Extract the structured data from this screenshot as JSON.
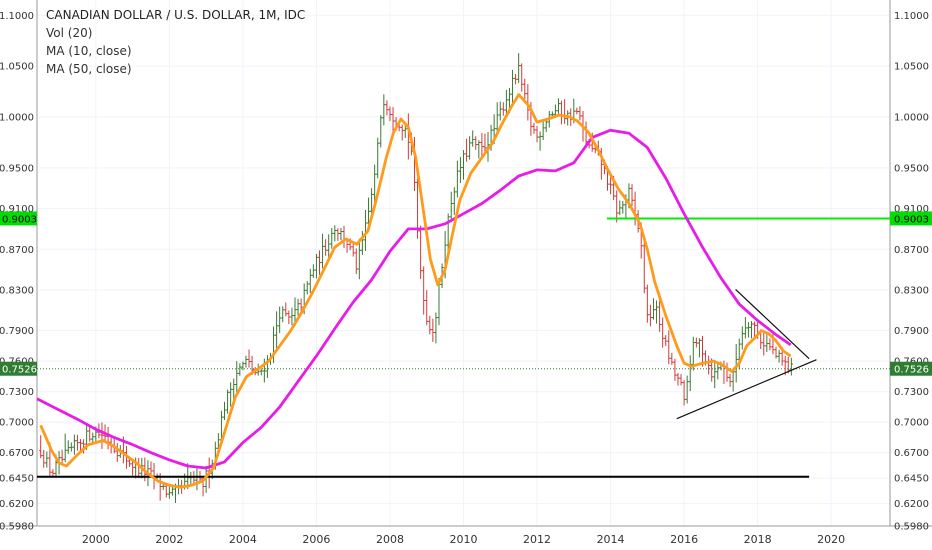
{
  "chart_data": {
    "type": "ohlc",
    "title": "CANADIAN DOLLAR / U.S. DOLLAR, 1M, IDC",
    "indicators": [
      "Vol (20)",
      "MA (10, close)",
      "MA (50, close)"
    ],
    "x_range": [
      1998.4,
      2021.6
    ],
    "y_range": [
      0.598,
      1.115
    ],
    "x_ticks": [
      "2000",
      "2002",
      "2004",
      "2006",
      "2008",
      "2010",
      "2012",
      "2014",
      "2016",
      "2018",
      "2020"
    ],
    "y_ticks": [
      "1.1000",
      "1.0500",
      "1.0000",
      "0.9500",
      "0.9100",
      "0.8700",
      "0.8300",
      "0.7900",
      "0.7600",
      "0.7300",
      "0.7000",
      "0.6700",
      "0.6450",
      "0.6200",
      "0.5980"
    ],
    "price_labels": [
      {
        "value": 0.9003,
        "label": "0.9003",
        "color": "#00dd00"
      },
      {
        "value": 0.7526,
        "label": "0.7526",
        "color": "#2e7d32"
      }
    ],
    "closes": [
      [
        1998.5,
        0.672
      ],
      [
        1998.8,
        0.65
      ],
      [
        1999.0,
        0.66
      ],
      [
        1999.3,
        0.672
      ],
      [
        1999.6,
        0.682
      ],
      [
        1999.9,
        0.69
      ],
      [
        2000.2,
        0.688
      ],
      [
        2000.5,
        0.676
      ],
      [
        2000.8,
        0.665
      ],
      [
        2001.1,
        0.655
      ],
      [
        2001.4,
        0.65
      ],
      [
        2001.7,
        0.642
      ],
      [
        2002.0,
        0.628
      ],
      [
        2002.3,
        0.634
      ],
      [
        2002.6,
        0.645
      ],
      [
        2002.9,
        0.638
      ],
      [
        2003.2,
        0.666
      ],
      [
        2003.5,
        0.716
      ],
      [
        2003.8,
        0.748
      ],
      [
        2004.1,
        0.76
      ],
      [
        2004.4,
        0.745
      ],
      [
        2004.7,
        0.762
      ],
      [
        2005.0,
        0.808
      ],
      [
        2005.3,
        0.8
      ],
      [
        2005.6,
        0.818
      ],
      [
        2005.9,
        0.85
      ],
      [
        2006.2,
        0.87
      ],
      [
        2006.5,
        0.892
      ],
      [
        2006.8,
        0.88
      ],
      [
        2007.1,
        0.852
      ],
      [
        2007.4,
        0.902
      ],
      [
        2007.6,
        0.945
      ],
      [
        2007.8,
        1.02
      ],
      [
        2008.1,
        1.0
      ],
      [
        2008.4,
        0.99
      ],
      [
        2008.6,
        0.965
      ],
      [
        2008.8,
        0.86
      ],
      [
        2009.0,
        0.8
      ],
      [
        2009.2,
        0.79
      ],
      [
        2009.5,
        0.88
      ],
      [
        2009.7,
        0.925
      ],
      [
        2009.9,
        0.95
      ],
      [
        2010.2,
        0.975
      ],
      [
        2010.5,
        0.968
      ],
      [
        2010.8,
        0.985
      ],
      [
        2011.0,
        1.005
      ],
      [
        2011.3,
        1.03
      ],
      [
        2011.5,
        1.045
      ],
      [
        2011.8,
        0.995
      ],
      [
        2012.0,
        0.98
      ],
      [
        2012.3,
        1.002
      ],
      [
        2012.6,
        1.008
      ],
      [
        2012.8,
        1.0
      ],
      [
        2013.1,
        1.005
      ],
      [
        2013.4,
        0.97
      ],
      [
        2013.7,
        0.96
      ],
      [
        2013.9,
        0.94
      ],
      [
        2014.2,
        0.905
      ],
      [
        2014.5,
        0.925
      ],
      [
        2014.8,
        0.885
      ],
      [
        2015.0,
        0.8
      ],
      [
        2015.2,
        0.815
      ],
      [
        2015.5,
        0.775
      ],
      [
        2015.7,
        0.75
      ],
      [
        2015.9,
        0.738
      ],
      [
        2016.0,
        0.718
      ],
      [
        2016.2,
        0.77
      ],
      [
        2016.4,
        0.78
      ],
      [
        2016.6,
        0.762
      ],
      [
        2016.8,
        0.745
      ],
      [
        2017.0,
        0.758
      ],
      [
        2017.3,
        0.738
      ],
      [
        2017.5,
        0.78
      ],
      [
        2017.7,
        0.8
      ],
      [
        2017.9,
        0.795
      ],
      [
        2018.1,
        0.78
      ],
      [
        2018.3,
        0.775
      ],
      [
        2018.5,
        0.765
      ],
      [
        2018.7,
        0.758
      ],
      [
        2018.9,
        0.752
      ]
    ],
    "ma10": [
      [
        1998.5,
        0.697
      ],
      [
        1998.8,
        0.672
      ],
      [
        1999.0,
        0.66
      ],
      [
        1999.2,
        0.657
      ],
      [
        1999.5,
        0.668
      ],
      [
        1999.8,
        0.678
      ],
      [
        2000.2,
        0.682
      ],
      [
        2000.5,
        0.676
      ],
      [
        2000.8,
        0.668
      ],
      [
        2001.1,
        0.66
      ],
      [
        2001.4,
        0.65
      ],
      [
        2001.7,
        0.642
      ],
      [
        2002.0,
        0.638
      ],
      [
        2002.3,
        0.636
      ],
      [
        2002.6,
        0.638
      ],
      [
        2002.9,
        0.642
      ],
      [
        2003.2,
        0.655
      ],
      [
        2003.5,
        0.69
      ],
      [
        2003.8,
        0.725
      ],
      [
        2004.1,
        0.745
      ],
      [
        2004.4,
        0.752
      ],
      [
        2004.7,
        0.76
      ],
      [
        2005.0,
        0.775
      ],
      [
        2005.3,
        0.79
      ],
      [
        2005.6,
        0.808
      ],
      [
        2005.9,
        0.828
      ],
      [
        2006.2,
        0.85
      ],
      [
        2006.5,
        0.872
      ],
      [
        2006.8,
        0.88
      ],
      [
        2007.1,
        0.875
      ],
      [
        2007.4,
        0.888
      ],
      [
        2007.6,
        0.915
      ],
      [
        2007.9,
        0.96
      ],
      [
        2008.1,
        0.985
      ],
      [
        2008.3,
        0.998
      ],
      [
        2008.5,
        0.99
      ],
      [
        2008.7,
        0.96
      ],
      [
        2008.9,
        0.91
      ],
      [
        2009.1,
        0.86
      ],
      [
        2009.3,
        0.835
      ],
      [
        2009.5,
        0.85
      ],
      [
        2009.7,
        0.885
      ],
      [
        2009.9,
        0.918
      ],
      [
        2010.2,
        0.945
      ],
      [
        2010.5,
        0.96
      ],
      [
        2010.8,
        0.975
      ],
      [
        2011.0,
        0.99
      ],
      [
        2011.3,
        1.01
      ],
      [
        2011.5,
        1.022
      ],
      [
        2011.8,
        1.01
      ],
      [
        2012.0,
        0.995
      ],
      [
        2012.3,
        0.998
      ],
      [
        2012.6,
        1.002
      ],
      [
        2012.9,
        1.0
      ],
      [
        2013.1,
        0.996
      ],
      [
        2013.4,
        0.985
      ],
      [
        2013.7,
        0.965
      ],
      [
        2013.9,
        0.95
      ],
      [
        2014.2,
        0.93
      ],
      [
        2014.5,
        0.915
      ],
      [
        2014.8,
        0.895
      ],
      [
        2015.0,
        0.87
      ],
      [
        2015.2,
        0.838
      ],
      [
        2015.5,
        0.805
      ],
      [
        2015.8,
        0.775
      ],
      [
        2016.0,
        0.758
      ],
      [
        2016.2,
        0.755
      ],
      [
        2016.5,
        0.758
      ],
      [
        2016.8,
        0.76
      ],
      [
        2017.0,
        0.757
      ],
      [
        2017.3,
        0.75
      ],
      [
        2017.5,
        0.758
      ],
      [
        2017.7,
        0.775
      ],
      [
        2017.9,
        0.782
      ],
      [
        2018.1,
        0.79
      ],
      [
        2018.3,
        0.787
      ],
      [
        2018.5,
        0.78
      ],
      [
        2018.7,
        0.77
      ],
      [
        2018.9,
        0.765
      ]
    ],
    "ma50": [
      [
        1998.4,
        0.723
      ],
      [
        1999.0,
        0.712
      ],
      [
        1999.5,
        0.703
      ],
      [
        2000.0,
        0.693
      ],
      [
        2000.5,
        0.685
      ],
      [
        2001.0,
        0.678
      ],
      [
        2001.5,
        0.67
      ],
      [
        2002.0,
        0.663
      ],
      [
        2002.5,
        0.657
      ],
      [
        2003.0,
        0.655
      ],
      [
        2003.5,
        0.661
      ],
      [
        2004.0,
        0.68
      ],
      [
        2004.5,
        0.695
      ],
      [
        2005.0,
        0.715
      ],
      [
        2005.5,
        0.74
      ],
      [
        2006.0,
        0.765
      ],
      [
        2006.5,
        0.792
      ],
      [
        2007.0,
        0.818
      ],
      [
        2007.5,
        0.84
      ],
      [
        2008.0,
        0.868
      ],
      [
        2008.5,
        0.89
      ],
      [
        2009.0,
        0.89
      ],
      [
        2009.5,
        0.895
      ],
      [
        2010.0,
        0.905
      ],
      [
        2010.5,
        0.915
      ],
      [
        2011.0,
        0.928
      ],
      [
        2011.5,
        0.942
      ],
      [
        2012.0,
        0.948
      ],
      [
        2012.5,
        0.947
      ],
      [
        2013.0,
        0.955
      ],
      [
        2013.5,
        0.98
      ],
      [
        2014.0,
        0.987
      ],
      [
        2014.5,
        0.984
      ],
      [
        2015.0,
        0.97
      ],
      [
        2015.5,
        0.94
      ],
      [
        2016.0,
        0.905
      ],
      [
        2016.5,
        0.872
      ],
      [
        2017.0,
        0.842
      ],
      [
        2017.5,
        0.816
      ],
      [
        2018.0,
        0.8
      ],
      [
        2018.5,
        0.786
      ],
      [
        2018.9,
        0.776
      ]
    ],
    "horizontal_lines": [
      {
        "value": 0.9003,
        "x_start": 2013.9,
        "color": "#00ee00"
      },
      {
        "value": 0.6464,
        "x_start": 1998.4,
        "x_end": 2019.4,
        "color": "#000000"
      }
    ],
    "trendlines": [
      {
        "from": [
          2015.8,
          0.7035
        ],
        "to": [
          2019.6,
          0.7615
        ]
      },
      {
        "from": [
          2017.4,
          0.8305
        ],
        "to": [
          2019.4,
          0.7625
        ]
      }
    ]
  }
}
